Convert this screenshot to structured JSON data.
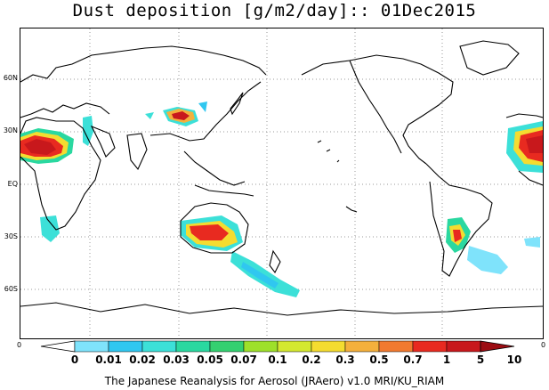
{
  "title": "Dust deposition [g/m2/day]:: 01Dec2015",
  "lat_labels": [
    "60N",
    "30N",
    "EQ",
    "30S",
    "60S"
  ],
  "corner_labels": {
    "left": "0",
    "right": "0"
  },
  "colorbar": {
    "labels": [
      "0",
      "0.01",
      "0.02",
      "0.03",
      "0.05",
      "0.07",
      "0.1",
      "0.2",
      "0.3",
      "0.5",
      "0.7",
      "1",
      "5",
      "10"
    ],
    "colors": [
      "#ffffff",
      "#7fe3fb",
      "#30c7f0",
      "#3ce0d8",
      "#2ad8a0",
      "#34d070",
      "#9ee02a",
      "#d4e830",
      "#f4dc30",
      "#f4b03c",
      "#f27a30",
      "#e82a20",
      "#c8181c",
      "#9c0c12"
    ]
  },
  "footer": "The Japanese Reanalysis for Aerosol (JRAero) v1.0 MRI/KU_RIAM"
}
